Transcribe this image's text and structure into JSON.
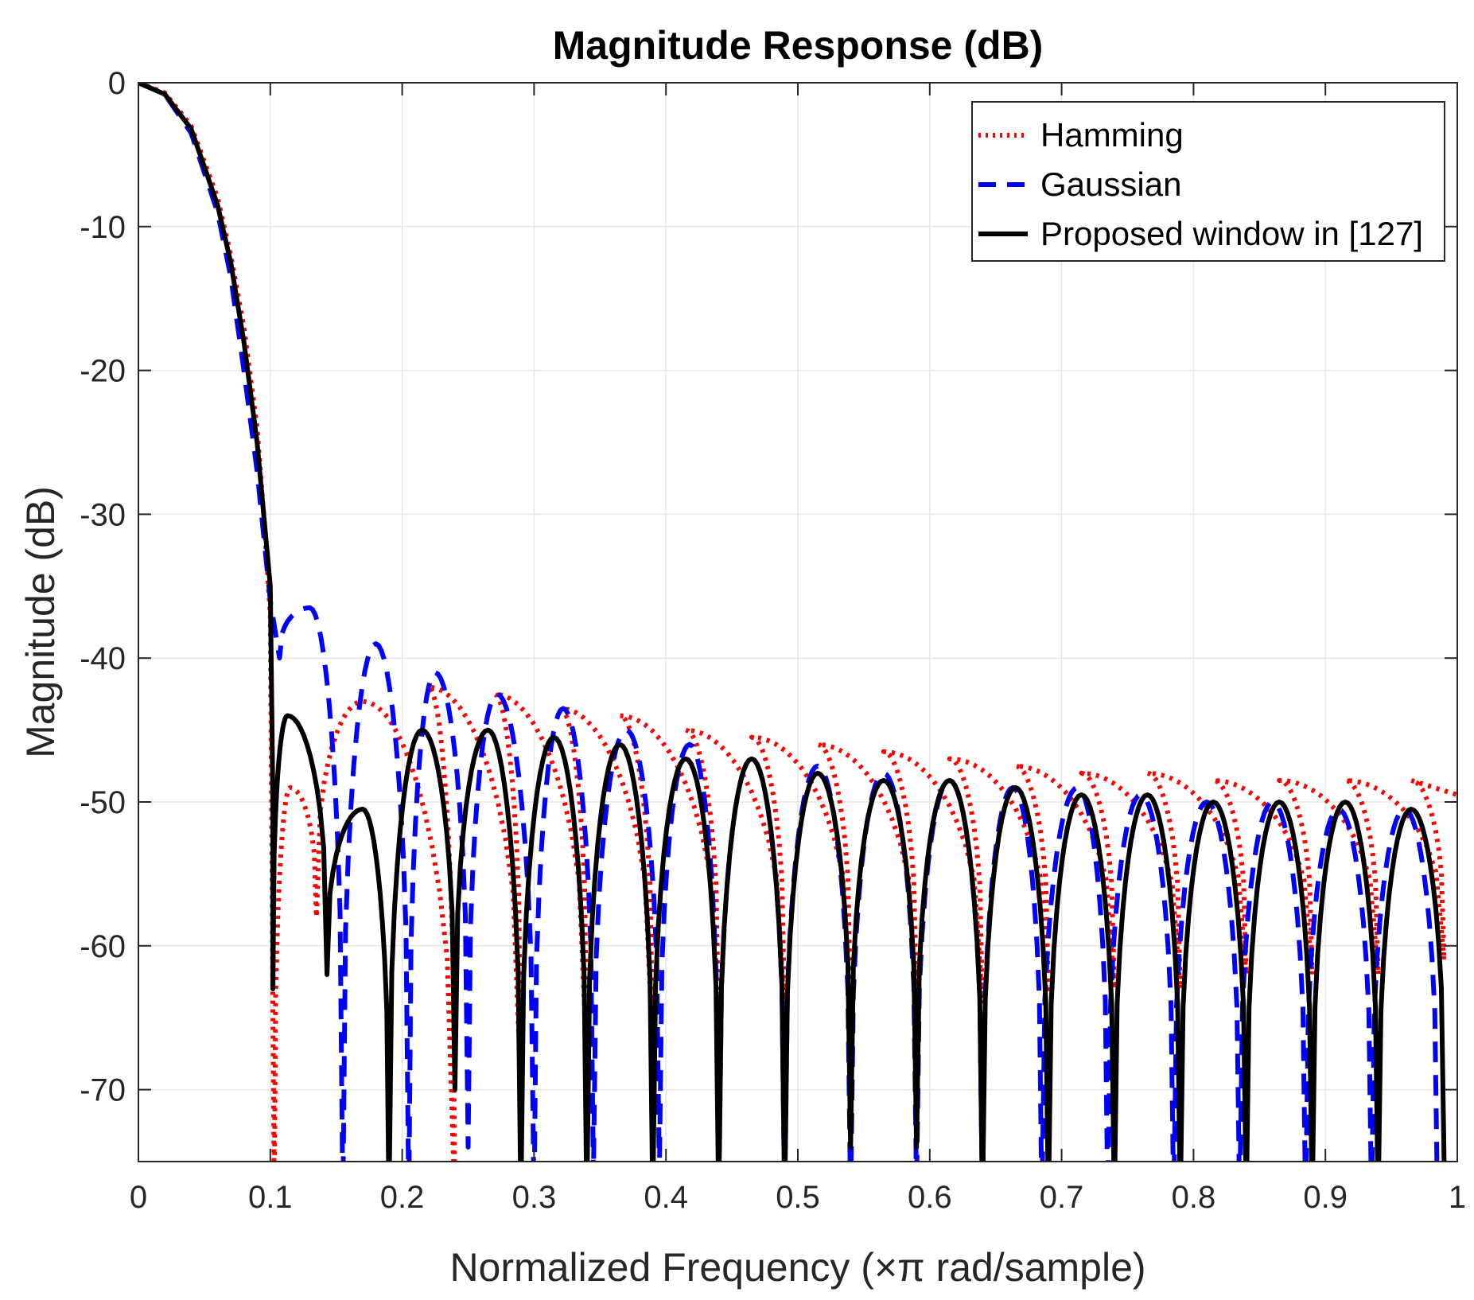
{
  "chart_data": {
    "type": "line",
    "title": "Magnitude Response (dB)",
    "xlabel": "Normalized Frequency (×π rad/sample)",
    "ylabel": "Magnitude (dB)",
    "xlim": [
      0,
      1
    ],
    "ylim": [
      -75,
      0
    ],
    "xticks": [
      0,
      0.1,
      0.2,
      0.3,
      0.4,
      0.5,
      0.6,
      0.7,
      0.8,
      0.9,
      1
    ],
    "xtick_labels": [
      "0",
      "0.1",
      "0.2",
      "0.3",
      "0.4",
      "0.5",
      "0.6",
      "0.7",
      "0.8",
      "0.9",
      "1"
    ],
    "yticks": [
      0,
      -10,
      -20,
      -30,
      -40,
      -50,
      -60,
      -70
    ],
    "ytick_labels": [
      "0",
      "-10",
      "-20",
      "-30",
      "-40",
      "-50",
      "-60",
      "-70"
    ],
    "grid": true,
    "legend_position": "top-right",
    "series": [
      {
        "name": "Hamming",
        "color": "#ff0000",
        "style": "dotted",
        "main_lobe": [
          [
            0,
            0
          ],
          [
            0.02,
            -0.7
          ],
          [
            0.04,
            -3
          ],
          [
            0.06,
            -8
          ],
          [
            0.07,
            -12
          ],
          [
            0.08,
            -17
          ],
          [
            0.09,
            -24
          ],
          [
            0.095,
            -30
          ],
          [
            0.1,
            -37
          ]
        ],
        "nulls": [
          0.103,
          0.135,
          0.24,
          0.29,
          0.34,
          0.39,
          0.44,
          0.49,
          0.54,
          0.59,
          0.64,
          0.69,
          0.74,
          0.79,
          0.84,
          0.89,
          0.94,
          0.99
        ],
        "null_depths": [
          -78,
          -58,
          -78,
          -70,
          -68,
          -67,
          -66,
          -65,
          -64,
          -64,
          -64,
          -63,
          -63,
          -63,
          -62,
          -62,
          -62,
          -61
        ],
        "peaks": [
          [
            0.115,
            -49
          ],
          [
            0.17,
            -43
          ],
          [
            0.22,
            -42
          ],
          [
            0.27,
            -42.5
          ],
          [
            0.32,
            -43.5
          ],
          [
            0.365,
            -44
          ],
          [
            0.415,
            -45
          ],
          [
            0.465,
            -45.5
          ],
          [
            0.515,
            -46
          ],
          [
            0.565,
            -46.5
          ],
          [
            0.615,
            -47
          ],
          [
            0.665,
            -47.5
          ],
          [
            0.715,
            -48
          ],
          [
            0.765,
            -48
          ],
          [
            0.815,
            -48.5
          ],
          [
            0.865,
            -48.5
          ],
          [
            0.915,
            -48.5
          ],
          [
            0.965,
            -48.5
          ]
        ],
        "end": [
          1.0,
          -49.5
        ]
      },
      {
        "name": "Gaussian",
        "color": "#0000ff",
        "style": "dashed",
        "main_lobe": [
          [
            0,
            0
          ],
          [
            0.02,
            -0.8
          ],
          [
            0.04,
            -3.5
          ],
          [
            0.06,
            -9
          ],
          [
            0.07,
            -13.5
          ],
          [
            0.08,
            -20
          ],
          [
            0.09,
            -27
          ],
          [
            0.1,
            -36
          ]
        ],
        "nulls": [
          0.107,
          0.155,
          0.205,
          0.25,
          0.3,
          0.345,
          0.395,
          0.44,
          0.49,
          0.54,
          0.59,
          0.64,
          0.685,
          0.735,
          0.785,
          0.835,
          0.885,
          0.935,
          0.985
        ],
        "null_depths": [
          -40,
          -78,
          -78,
          -74,
          -78,
          -76,
          -76,
          -78,
          -78,
          -78,
          -77,
          -78,
          -78,
          -78,
          -78,
          -78,
          -78,
          -78,
          -78
        ],
        "peaks": [
          [
            0.13,
            -36.5
          ],
          [
            0.18,
            -39
          ],
          [
            0.225,
            -41
          ],
          [
            0.272,
            -42.5
          ],
          [
            0.322,
            -43.5
          ],
          [
            0.37,
            -45
          ],
          [
            0.418,
            -46
          ],
          [
            0.465,
            -47
          ],
          [
            0.515,
            -47.5
          ],
          [
            0.565,
            -48
          ],
          [
            0.615,
            -48.5
          ],
          [
            0.663,
            -49
          ],
          [
            0.712,
            -49
          ],
          [
            0.76,
            -49.5
          ],
          [
            0.81,
            -50
          ],
          [
            0.86,
            -50
          ],
          [
            0.91,
            -50.5
          ],
          [
            0.96,
            -50.5
          ]
        ],
        "end": [
          1.0,
          -50
        ]
      },
      {
        "name": "Proposed window in [127]",
        "color": "#000000",
        "style": "solid",
        "main_lobe": [
          [
            0,
            0
          ],
          [
            0.02,
            -0.8
          ],
          [
            0.04,
            -3.2
          ],
          [
            0.06,
            -8.5
          ],
          [
            0.07,
            -12.5
          ],
          [
            0.08,
            -18
          ],
          [
            0.09,
            -25
          ],
          [
            0.1,
            -35
          ],
          [
            0.102,
            -50
          ]
        ],
        "nulls": [
          0.102,
          0.143,
          0.19,
          0.24,
          0.29,
          0.34,
          0.39,
          0.44,
          0.49,
          0.54,
          0.59,
          0.64,
          0.69,
          0.74,
          0.79,
          0.84,
          0.89,
          0.94,
          0.99
        ],
        "null_depths": [
          -63,
          -62,
          -78,
          -70,
          -78,
          -78,
          -78,
          -78,
          -78,
          -74,
          -74,
          -78,
          -78,
          -78,
          -78,
          -78,
          -78,
          -78,
          -75
        ],
        "peaks": [
          [
            0.113,
            -44
          ],
          [
            0.17,
            -50.5
          ],
          [
            0.215,
            -45
          ],
          [
            0.265,
            -45
          ],
          [
            0.315,
            -45.5
          ],
          [
            0.365,
            -46
          ],
          [
            0.415,
            -47
          ],
          [
            0.465,
            -47
          ],
          [
            0.515,
            -48
          ],
          [
            0.565,
            -48.5
          ],
          [
            0.615,
            -48.5
          ],
          [
            0.665,
            -49
          ],
          [
            0.715,
            -49.5
          ],
          [
            0.765,
            -49.5
          ],
          [
            0.815,
            -50
          ],
          [
            0.865,
            -50
          ],
          [
            0.915,
            -50
          ],
          [
            0.965,
            -50.5
          ]
        ],
        "end": [
          1.0,
          -50.5
        ]
      }
    ]
  }
}
